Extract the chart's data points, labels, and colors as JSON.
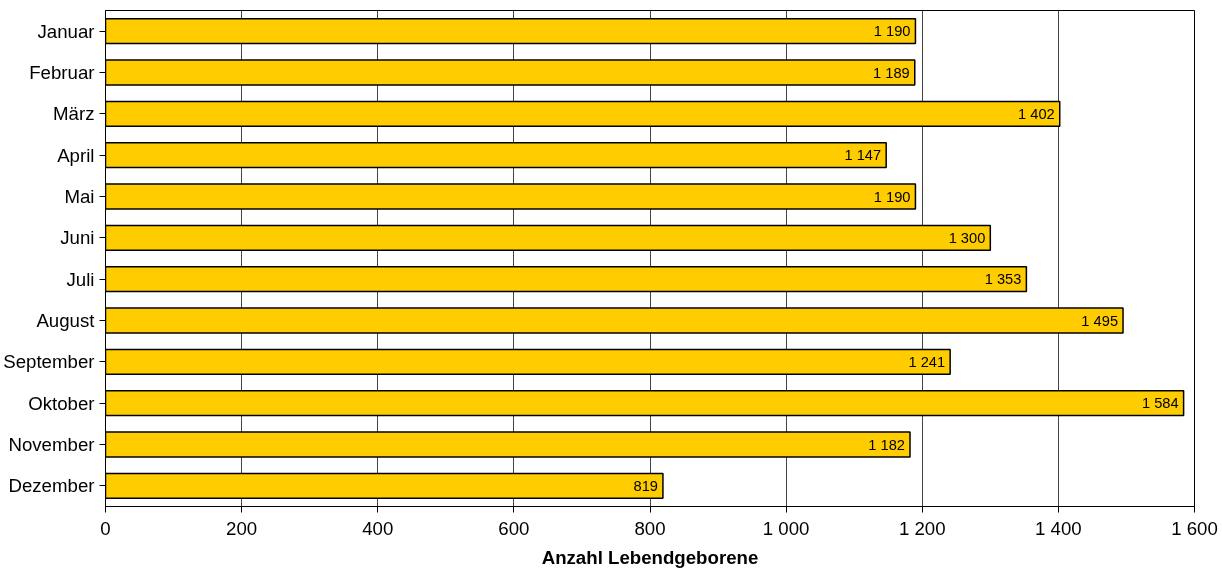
{
  "chart_data": {
    "type": "bar",
    "orientation": "horizontal",
    "xlabel": "Anzahl Lebendgeborene",
    "categories": [
      "Januar",
      "Februar",
      "März",
      "April",
      "Mai",
      "Juni",
      "Juli",
      "August",
      "September",
      "Oktober",
      "November",
      "Dezember"
    ],
    "values": [
      1190,
      1189,
      1402,
      1147,
      1190,
      1300,
      1353,
      1495,
      1241,
      1584,
      1182,
      819
    ],
    "value_labels": [
      "1 190",
      "1 189",
      "1 402",
      "1 147",
      "1 190",
      "1 300",
      "1 353",
      "1 495",
      "1 241",
      "1 584",
      "1 182",
      "819"
    ],
    "color": "#ffcc00",
    "xlim": [
      0,
      1600
    ],
    "xticks": [
      0,
      200,
      400,
      600,
      800,
      {
        "value": 1000,
        "label": "1 000"
      },
      {
        "value": 1200,
        "label": "1 200"
      },
      {
        "value": 1400,
        "label": "1 400"
      },
      {
        "value": 1600,
        "label": "1 600"
      }
    ],
    "grid": "x"
  }
}
